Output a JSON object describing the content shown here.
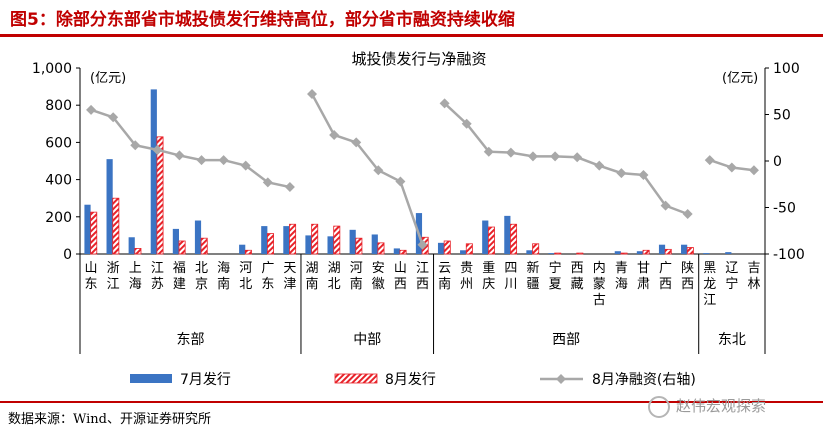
{
  "header": {
    "figure_title": "图5：除部分东部省市城投债发行维持高位，部分省市融资持续收缩"
  },
  "footer": {
    "source": "数据来源：Wind、开源证券研究所"
  },
  "watermark": {
    "text": "赵伟宏观探索",
    "icon": "wechat-icon"
  },
  "colors": {
    "title_red": "#c00000",
    "july_bar": "#3b74c3",
    "aug_bar": "#e8232a",
    "net_line": "#a8a8a8"
  },
  "chart_data": {
    "type": "bar",
    "title": "城投债发行与净融资",
    "ylabel": "(亿元)",
    "y2label": "(亿元)",
    "ylim": [
      0,
      1000
    ],
    "y2lim": [
      -100,
      100
    ],
    "yticks": [
      "0",
      "200",
      "400",
      "600",
      "800",
      "1,000"
    ],
    "y2ticks": [
      "-100",
      "-50",
      "0",
      "50",
      "100"
    ],
    "legend_position": "bottom",
    "grid": false,
    "regions": [
      {
        "name": "东部",
        "categories": [
          "山东",
          "浙江",
          "上海",
          "江苏",
          "福建",
          "北京",
          "海南",
          "河北",
          "广东",
          "天津"
        ]
      },
      {
        "name": "中部",
        "categories": [
          "湖南",
          "湖北",
          "河南",
          "安徽",
          "山西",
          "江西"
        ]
      },
      {
        "name": "西部",
        "categories": [
          "云南",
          "贵州",
          "重庆",
          "四川",
          "新疆",
          "宁夏",
          "西藏",
          "内蒙古",
          "青海",
          "甘肃",
          "广西",
          "陕西"
        ]
      },
      {
        "name": "东北",
        "categories": [
          "黑龙江",
          "辽宁",
          "吉林"
        ]
      }
    ],
    "series": [
      {
        "name": "7月发行",
        "axis": "left",
        "values": [
          265,
          510,
          90,
          885,
          135,
          180,
          0,
          50,
          150,
          150,
          100,
          95,
          130,
          105,
          30,
          220,
          60,
          20,
          180,
          205,
          20,
          5,
          0,
          0,
          15,
          15,
          50,
          50,
          5,
          10,
          0
        ]
      },
      {
        "name": "8月发行",
        "axis": "left",
        "values": [
          225,
          300,
          30,
          630,
          70,
          85,
          0,
          20,
          110,
          160,
          160,
          150,
          85,
          60,
          20,
          90,
          70,
          55,
          145,
          160,
          55,
          5,
          5,
          0,
          5,
          20,
          25,
          35,
          0,
          0,
          0
        ]
      },
      {
        "name": "8月净融资(右轴)",
        "axis": "right",
        "segments": [
          {
            "region": "东部",
            "values": [
              55,
              47,
              17,
              12,
              6,
              1,
              1,
              -5,
              -23,
              -28
            ]
          },
          {
            "region": "中部",
            "values": [
              72,
              28,
              20,
              -10,
              -22,
              -90
            ]
          },
          {
            "region": "西部",
            "values": [
              62,
              40,
              10,
              9,
              5,
              5,
              4,
              -5,
              -13,
              -15,
              -48,
              -57
            ]
          },
          {
            "region": "东北",
            "values": [
              1,
              -7,
              -10
            ]
          }
        ]
      }
    ]
  }
}
